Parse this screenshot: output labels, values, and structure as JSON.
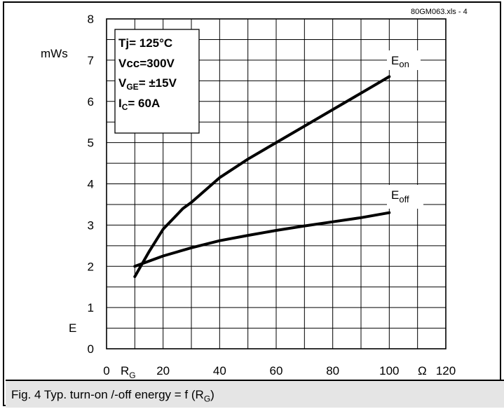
{
  "figure": {
    "source_note": "80GM063.xls   - 4",
    "caption": "Fig. 4 Typ. turn-on /-off energy = f (R",
    "caption_sub": "G",
    "caption_end": ")"
  },
  "conditions_box": {
    "line1": "Tj= 125°C",
    "line2": "Vcc=300V",
    "line3_main": "V",
    "line3_sub": "GE",
    "line3_rest": "= ±15V",
    "line4_main": "I",
    "line4_sub": "C",
    "line4_rest": "=  60A"
  },
  "chart_data": {
    "type": "line",
    "title": "",
    "ylabel": "E",
    "yunit": "mWs",
    "xlabel": "R",
    "xlabel_sub": "G",
    "xunit": "Ω",
    "xlim": [
      0,
      120
    ],
    "ylim": [
      0,
      8
    ],
    "x_ticks": [
      "0",
      "20",
      "40",
      "60",
      "80",
      "100",
      "120"
    ],
    "y_ticks": [
      "0",
      "1",
      "2",
      "3",
      "4",
      "5",
      "6",
      "7",
      "8"
    ],
    "grid": true,
    "series": [
      {
        "name": "E",
        "name_sub": "on",
        "x": [
          10,
          15,
          20,
          27,
          30,
          40,
          50,
          60,
          70,
          80,
          90,
          100
        ],
        "y": [
          1.75,
          2.35,
          2.9,
          3.4,
          3.55,
          4.15,
          4.6,
          5.0,
          5.4,
          5.8,
          6.2,
          6.6
        ]
      },
      {
        "name": "E",
        "name_sub": "off",
        "x": [
          10,
          20,
          30,
          40,
          50,
          60,
          70,
          80,
          90,
          100
        ],
        "y": [
          2.0,
          2.25,
          2.45,
          2.62,
          2.75,
          2.87,
          2.98,
          3.08,
          3.18,
          3.3
        ]
      }
    ]
  }
}
